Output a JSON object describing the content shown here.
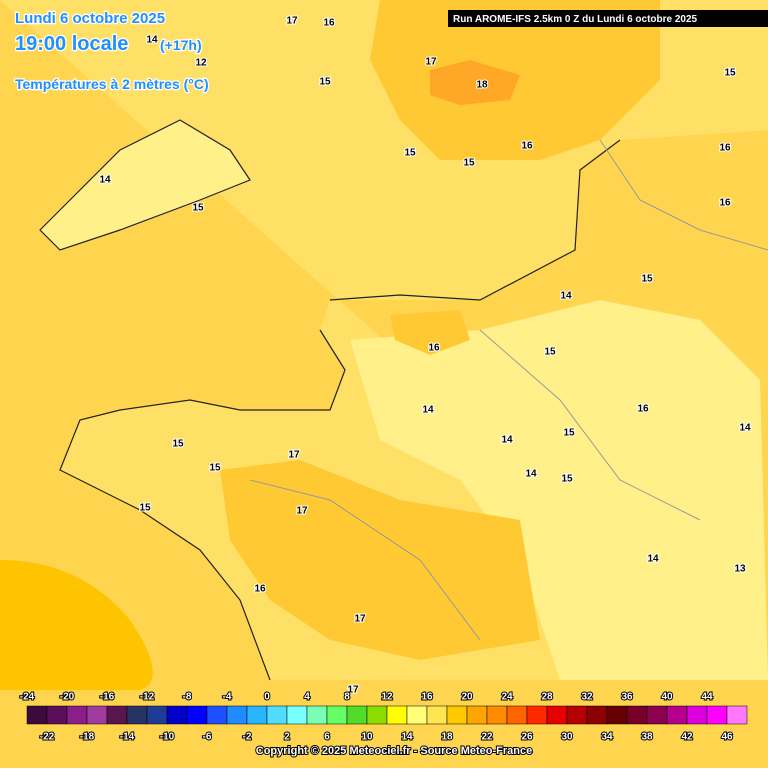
{
  "header": {
    "date": "Lundi 6 octobre 2025",
    "time": "19:00 locale",
    "lead": "(+17h)",
    "variable": "Températures à 2 mètres (°C)",
    "run": "Run AROME-IFS 2.5km 0 Z du Lundi 6 octobre 2025"
  },
  "map": {
    "contour_labels": [
      17,
      16,
      14,
      12,
      17,
      18,
      15,
      15,
      16,
      15,
      15,
      14,
      15,
      16,
      16,
      15,
      14,
      16,
      15,
      15,
      14,
      14,
      15,
      16,
      14,
      15,
      17,
      15,
      15,
      14,
      17,
      16,
      17,
      14,
      13,
      17
    ]
  },
  "colorbar": {
    "top_labels": [
      -24,
      -20,
      -16,
      -12,
      -8,
      -4,
      0,
      4,
      8,
      12,
      16,
      20,
      24,
      28,
      32,
      36,
      40,
      44
    ],
    "bottom_labels": [
      -22,
      -18,
      -14,
      -10,
      -6,
      -2,
      2,
      6,
      10,
      14,
      18,
      22,
      26,
      30,
      34,
      38,
      42,
      46
    ],
    "colors": [
      "#3c0a3c",
      "#5a0f5a",
      "#8c1e8c",
      "#a03ca0",
      "#5a1450",
      "#283264",
      "#1e3c96",
      "#0000c8",
      "#0000ff",
      "#1e50ff",
      "#1e8cff",
      "#28b4ff",
      "#50dcff",
      "#78ffff",
      "#78ffb4",
      "#64ff64",
      "#50dc28",
      "#8cdc00",
      "#ffff00",
      "#ffff78",
      "#ffe650",
      "#ffc800",
      "#ffa500",
      "#ff8c00",
      "#ff6400",
      "#ff2800",
      "#e60000",
      "#b40000",
      "#8c0000",
      "#640000",
      "#780028",
      "#8c0050",
      "#b4008c",
      "#dc00dc",
      "#ff00ff",
      "#ff78ff"
    ]
  },
  "footer": {
    "copyright": "Copyright © 2025 Meteociel.fr - Source Meteo-France"
  }
}
